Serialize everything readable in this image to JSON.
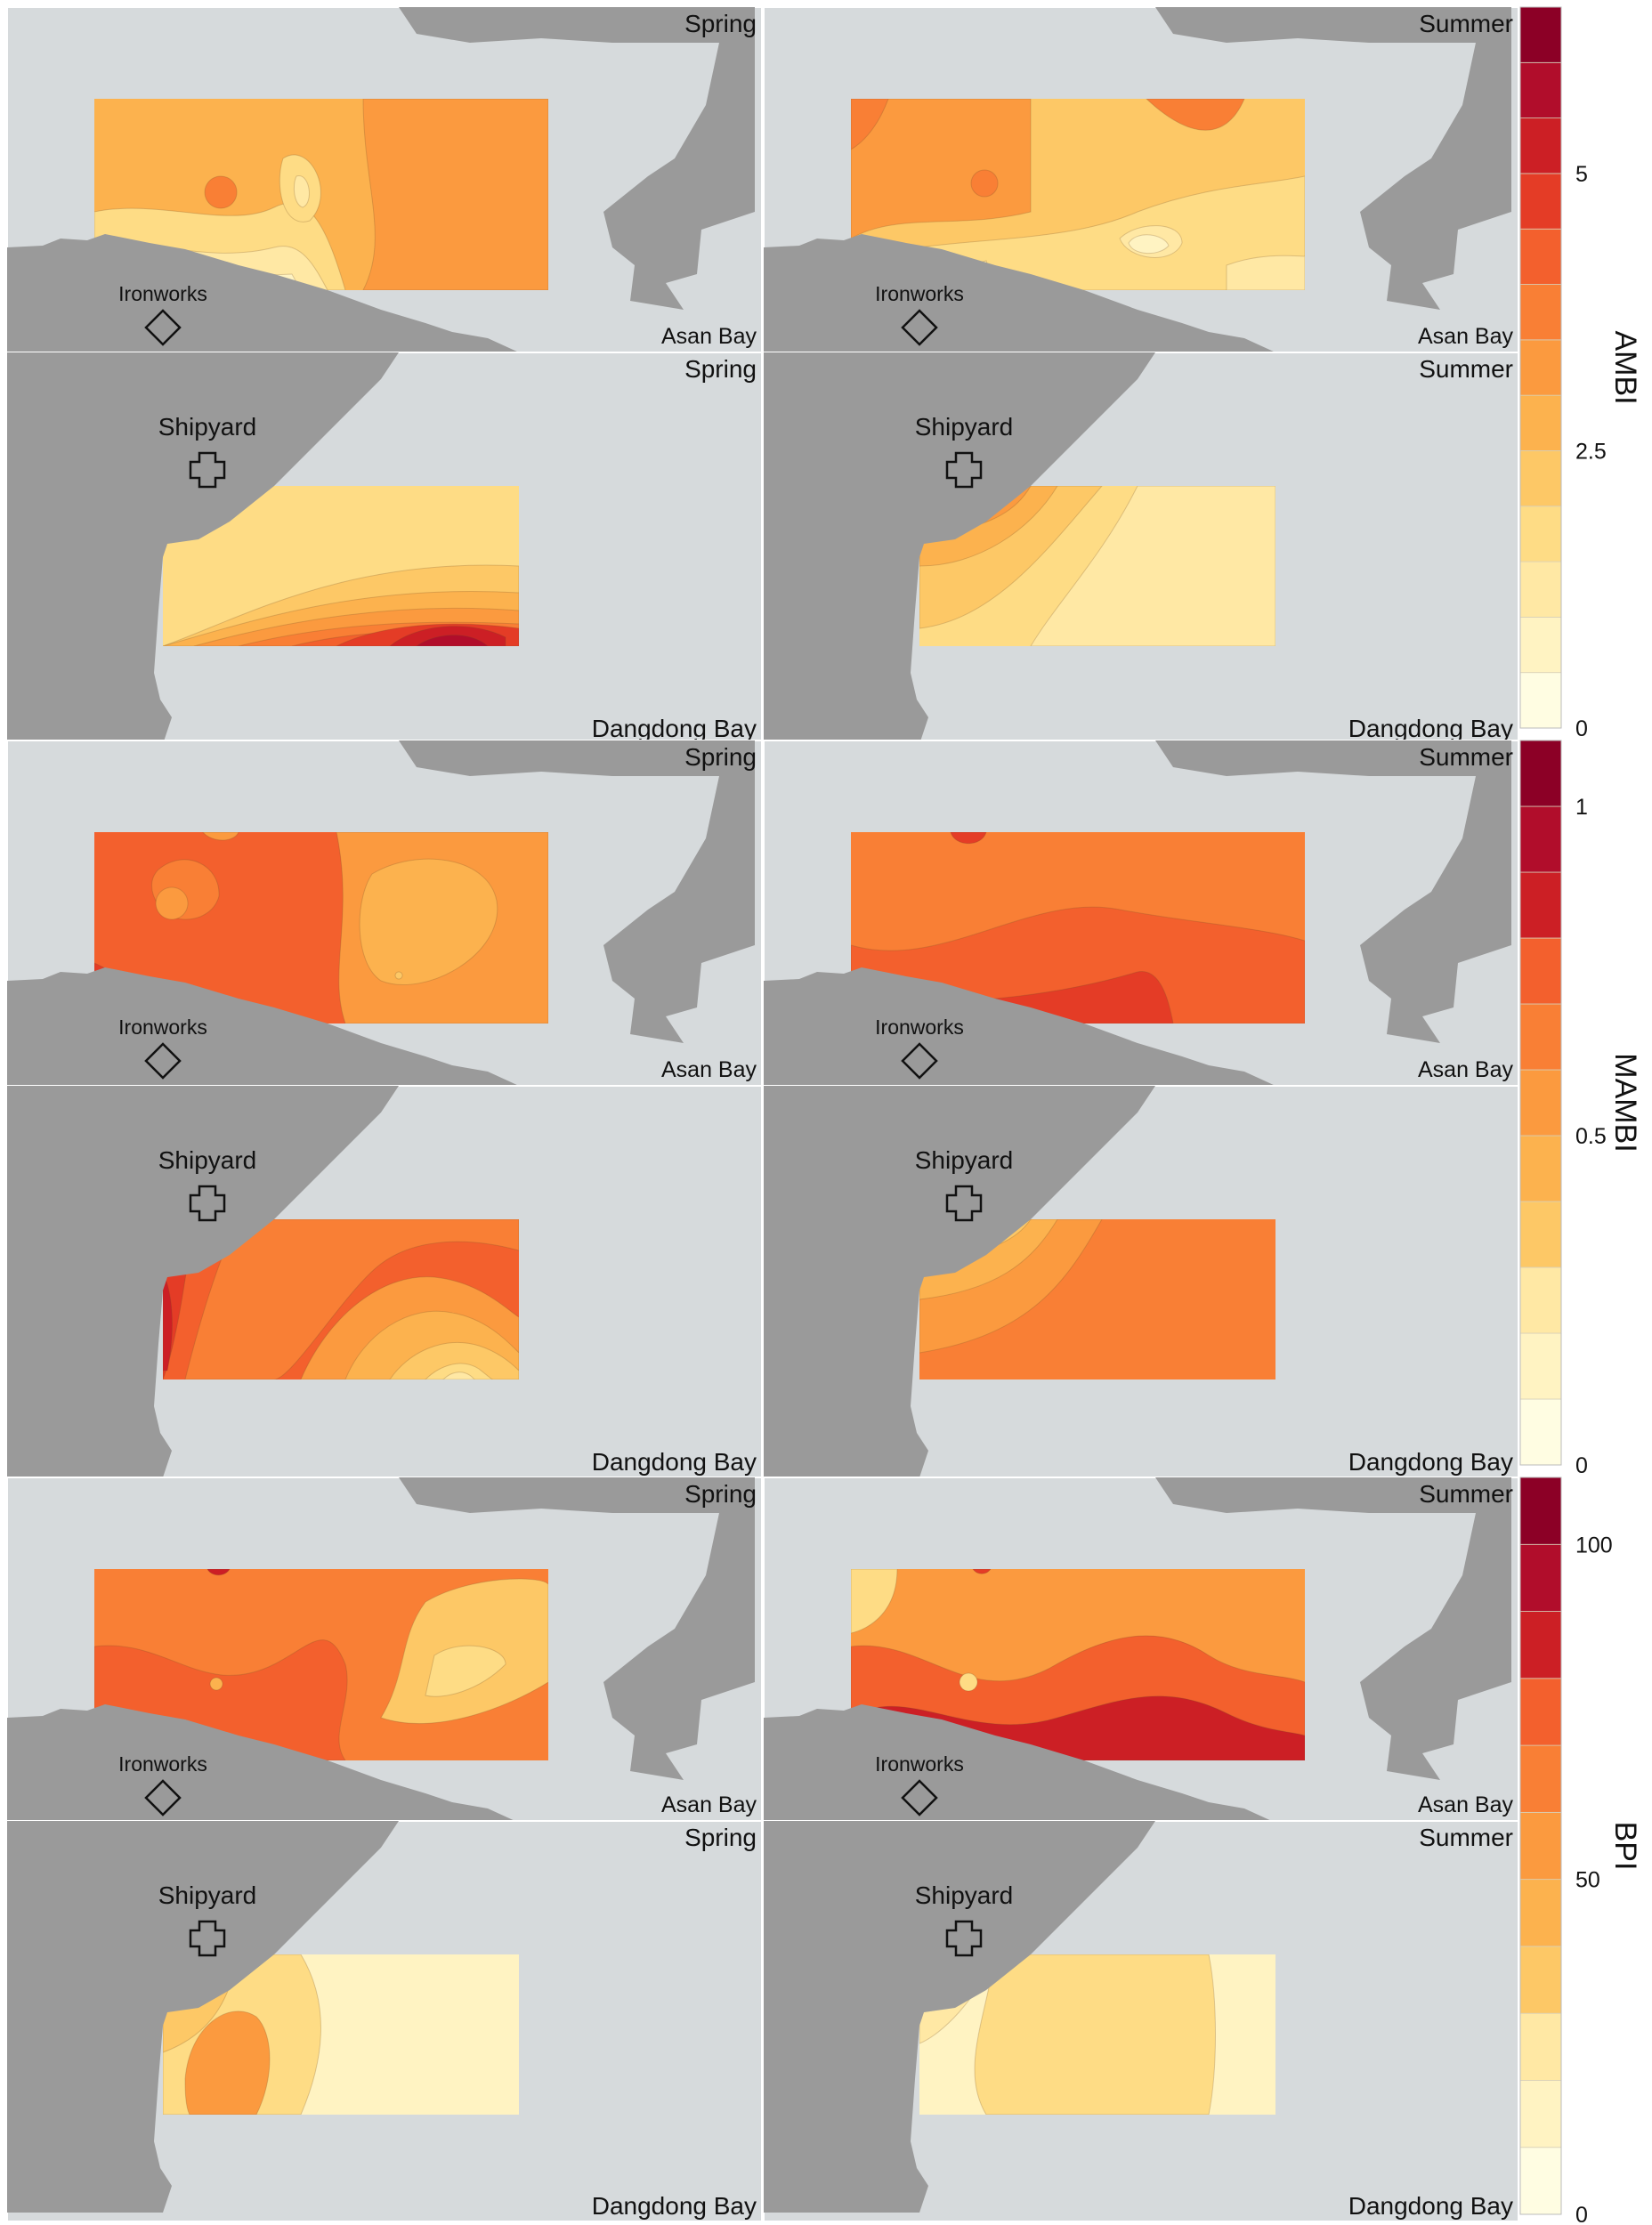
{
  "figure": {
    "rows": [
      {
        "index": "AMBI",
        "panels": [
          {
            "site": "ironworks",
            "season": "Spring",
            "landmark": "Ironworks",
            "bay": "Asan Bay"
          },
          {
            "site": "ironworks",
            "season": "Summer",
            "landmark": "Ironworks",
            "bay": "Asan Bay"
          },
          {
            "site": "shipyard",
            "season": "Spring",
            "landmark": "Shipyard",
            "bay": "Dangdong Bay"
          },
          {
            "site": "shipyard",
            "season": "Summer",
            "landmark": "Shipyard",
            "bay": "Dangdong Bay"
          }
        ],
        "colorbar": {
          "label": "AMBI",
          "ticks": [
            {
              "value": 0,
              "label": "0"
            },
            {
              "value": 2.5,
              "label": "2.5"
            },
            {
              "value": 5,
              "label": "5"
            }
          ],
          "range": [
            0,
            6.5
          ],
          "classes": 13
        }
      },
      {
        "index": "MAMBI",
        "panels": [
          {
            "site": "ironworks",
            "season": "Spring",
            "landmark": "Ironworks",
            "bay": "Asan Bay"
          },
          {
            "site": "ironworks",
            "season": "Summer",
            "landmark": "Ironworks",
            "bay": "Asan Bay"
          },
          {
            "site": "shipyard",
            "season": "",
            "landmark": "Shipyard",
            "bay": "Dangdong Bay"
          },
          {
            "site": "shipyard",
            "season": "",
            "landmark": "Shipyard",
            "bay": "Dangdong Bay"
          }
        ],
        "colorbar": {
          "label": "MAMBI",
          "ticks": [
            {
              "value": 0,
              "label": "0"
            },
            {
              "value": 0.5,
              "label": "0.5"
            },
            {
              "value": 1,
              "label": "1"
            }
          ],
          "range": [
            0,
            1.1
          ],
          "classes": 11
        }
      },
      {
        "index": "BPI",
        "panels": [
          {
            "site": "ironworks",
            "season": "Spring",
            "landmark": "Ironworks",
            "bay": "Asan Bay"
          },
          {
            "site": "ironworks",
            "season": "Summer",
            "landmark": "Ironworks",
            "bay": "Asan Bay"
          },
          {
            "site": "shipyard",
            "season": "Spring",
            "landmark": "Shipyard",
            "bay": "Dangdong Bay"
          },
          {
            "site": "shipyard",
            "season": "Summer",
            "landmark": "Shipyard",
            "bay": "Dangdong Bay"
          }
        ],
        "colorbar": {
          "label": "BPI",
          "ticks": [
            {
              "value": 0,
              "label": "0"
            },
            {
              "value": 50,
              "label": "50"
            },
            {
              "value": 100,
              "label": "100"
            }
          ],
          "range": [
            0,
            110
          ],
          "classes": 11
        }
      }
    ],
    "palette": [
      "#fffde2",
      "#fff3c2",
      "#ffe8a4",
      "#fedc85",
      "#fdc866",
      "#fcb24e",
      "#fb9a3f",
      "#f97f35",
      "#f3602d",
      "#e43c26",
      "#cc1f25",
      "#b10d2b",
      "#8c0026"
    ],
    "colors": {
      "sea": "#d6dadc",
      "land": "#9a9a9a"
    }
  }
}
